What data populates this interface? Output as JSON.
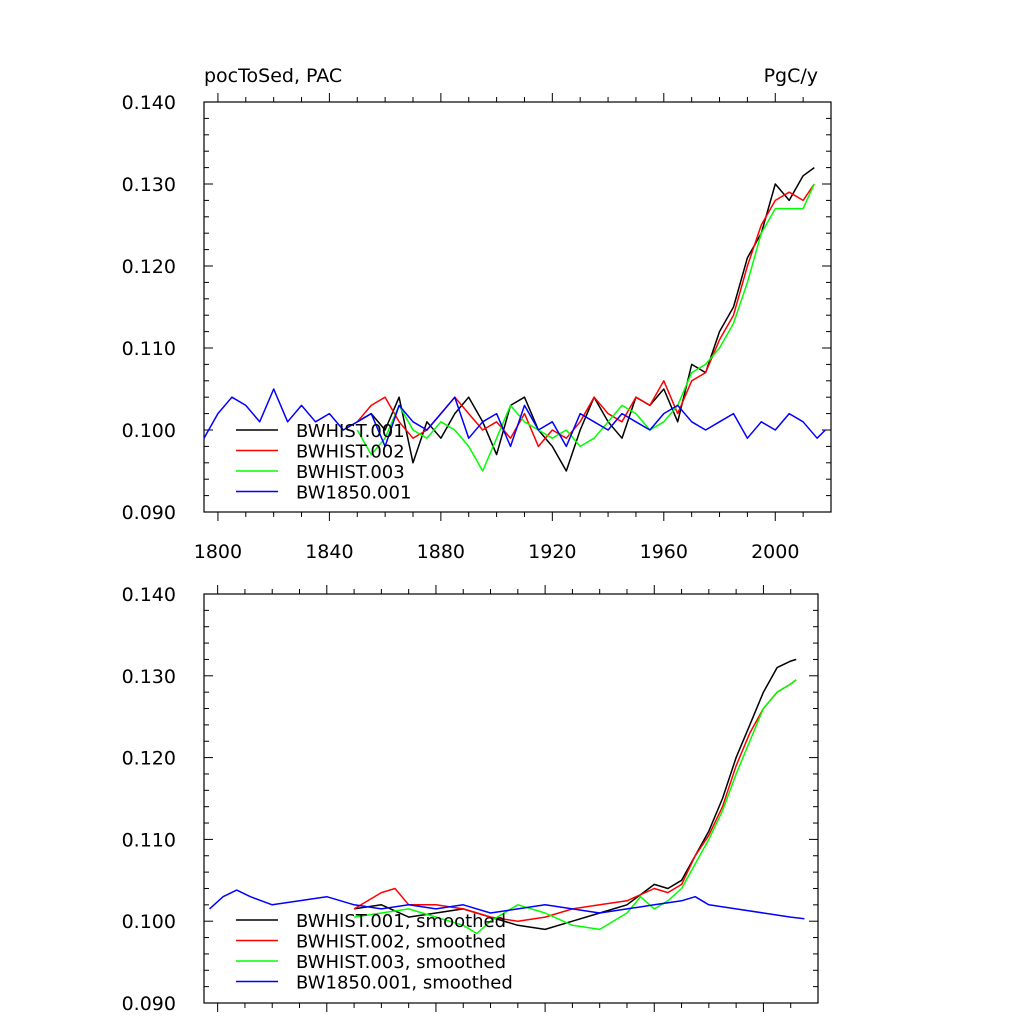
{
  "figure": {
    "left_label": "pocToSed, PAC",
    "right_label": "PgC/y"
  },
  "colors": {
    "BWHIST.001": "#000000",
    "BWHIST.002": "#ff0000",
    "BWHIST.003": "#00ff00",
    "BW1850.001": "#0000ff"
  },
  "chart_data": [
    {
      "type": "line",
      "title": "",
      "xlabel": "",
      "ylabel": "",
      "xlim": [
        1795,
        2020
      ],
      "ylim": [
        0.09,
        0.14
      ],
      "xticks": [
        "1800",
        "1840",
        "1880",
        "1920",
        "1960",
        "2000"
      ],
      "yticks": [
        "0.090",
        "0.100",
        "0.110",
        "0.120",
        "0.130",
        "0.140"
      ],
      "legend_position": "lower-left",
      "series": [
        {
          "name": "BWHIST.001",
          "color": "#000000",
          "x": [
            1850,
            1855,
            1860,
            1865,
            1870,
            1875,
            1880,
            1885,
            1890,
            1895,
            1900,
            1905,
            1910,
            1915,
            1920,
            1925,
            1930,
            1935,
            1940,
            1945,
            1950,
            1955,
            1960,
            1965,
            1970,
            1975,
            1980,
            1985,
            1990,
            1995,
            2000,
            2005,
            2010,
            2014
          ],
          "y": [
            0.101,
            0.102,
            0.1,
            0.104,
            0.096,
            0.101,
            0.099,
            0.102,
            0.104,
            0.101,
            0.097,
            0.103,
            0.104,
            0.1,
            0.098,
            0.095,
            0.1,
            0.104,
            0.101,
            0.099,
            0.104,
            0.103,
            0.105,
            0.101,
            0.108,
            0.107,
            0.112,
            0.115,
            0.121,
            0.124,
            0.13,
            0.128,
            0.131,
            0.132
          ]
        },
        {
          "name": "BWHIST.002",
          "color": "#ff0000",
          "x": [
            1850,
            1855,
            1860,
            1865,
            1870,
            1875,
            1880,
            1885,
            1890,
            1895,
            1900,
            1905,
            1910,
            1915,
            1920,
            1925,
            1930,
            1935,
            1940,
            1945,
            1950,
            1955,
            1960,
            1965,
            1970,
            1975,
            1980,
            1985,
            1990,
            1995,
            2000,
            2005,
            2010,
            2014
          ],
          "y": [
            0.101,
            0.103,
            0.104,
            0.101,
            0.099,
            0.1,
            0.102,
            0.104,
            0.102,
            0.1,
            0.101,
            0.099,
            0.102,
            0.098,
            0.1,
            0.099,
            0.101,
            0.104,
            0.102,
            0.101,
            0.104,
            0.103,
            0.106,
            0.102,
            0.106,
            0.107,
            0.111,
            0.114,
            0.12,
            0.125,
            0.128,
            0.129,
            0.128,
            0.13
          ]
        },
        {
          "name": "BWHIST.003",
          "color": "#00ff00",
          "x": [
            1850,
            1855,
            1860,
            1865,
            1870,
            1875,
            1880,
            1885,
            1890,
            1895,
            1900,
            1905,
            1910,
            1915,
            1920,
            1925,
            1930,
            1935,
            1940,
            1945,
            1950,
            1955,
            1960,
            1965,
            1970,
            1975,
            1980,
            1985,
            1990,
            1995,
            2000,
            2005,
            2010,
            2014
          ],
          "y": [
            0.1,
            0.097,
            0.099,
            0.103,
            0.1,
            0.099,
            0.101,
            0.1,
            0.098,
            0.095,
            0.099,
            0.103,
            0.101,
            0.1,
            0.099,
            0.1,
            0.098,
            0.099,
            0.101,
            0.103,
            0.102,
            0.1,
            0.101,
            0.103,
            0.107,
            0.108,
            0.11,
            0.113,
            0.118,
            0.124,
            0.127,
            0.127,
            0.127,
            0.13
          ]
        },
        {
          "name": "BW1850.001",
          "color": "#0000ff",
          "x": [
            1795,
            1800,
            1805,
            1810,
            1815,
            1820,
            1825,
            1830,
            1835,
            1840,
            1845,
            1850,
            1855,
            1860,
            1865,
            1870,
            1875,
            1880,
            1885,
            1890,
            1895,
            1900,
            1905,
            1910,
            1915,
            1920,
            1925,
            1930,
            1935,
            1940,
            1945,
            1950,
            1955,
            1960,
            1965,
            1970,
            1975,
            1980,
            1985,
            1990,
            1995,
            2000,
            2005,
            2010,
            2015,
            2018
          ],
          "y": [
            0.099,
            0.102,
            0.104,
            0.103,
            0.101,
            0.105,
            0.101,
            0.103,
            0.101,
            0.102,
            0.1,
            0.101,
            0.102,
            0.098,
            0.103,
            0.101,
            0.1,
            0.102,
            0.104,
            0.099,
            0.101,
            0.102,
            0.098,
            0.103,
            0.1,
            0.101,
            0.098,
            0.102,
            0.101,
            0.1,
            0.102,
            0.101,
            0.1,
            0.102,
            0.103,
            0.101,
            0.1,
            0.101,
            0.102,
            0.099,
            0.101,
            0.1,
            0.102,
            0.101,
            0.099,
            0.1
          ]
        }
      ]
    },
    {
      "type": "line",
      "title": "",
      "xlabel": "",
      "ylabel": "",
      "xlim": [
        1795,
        2020
      ],
      "ylim": [
        0.09,
        0.14
      ],
      "yticks": [
        "0.090",
        "0.100",
        "0.110",
        "0.120",
        "0.130",
        "0.140"
      ],
      "legend_position": "lower-left",
      "series": [
        {
          "name": "BWHIST.001, smoothed",
          "color": "#000000",
          "x": [
            1850,
            1860,
            1870,
            1880,
            1890,
            1900,
            1910,
            1920,
            1930,
            1940,
            1950,
            1960,
            1965,
            1970,
            1975,
            1980,
            1985,
            1990,
            1995,
            2000,
            2005,
            2010,
            2012
          ],
          "y": [
            0.1015,
            0.102,
            0.1005,
            0.101,
            0.1015,
            0.1005,
            0.0995,
            0.099,
            0.1,
            0.101,
            0.102,
            0.1045,
            0.104,
            0.105,
            0.108,
            0.111,
            0.115,
            0.12,
            0.124,
            0.128,
            0.131,
            0.1318,
            0.132
          ]
        },
        {
          "name": "BWHIST.002, smoothed",
          "color": "#ff0000",
          "x": [
            1850,
            1860,
            1865,
            1870,
            1880,
            1890,
            1900,
            1910,
            1920,
            1930,
            1940,
            1950,
            1960,
            1965,
            1970,
            1975,
            1980,
            1985,
            1990,
            1995,
            2000,
            2005,
            2010,
            2012
          ],
          "y": [
            0.1015,
            0.1035,
            0.104,
            0.102,
            0.102,
            0.1015,
            0.1005,
            0.1,
            0.1005,
            0.1015,
            0.102,
            0.1025,
            0.104,
            0.1035,
            0.1045,
            0.108,
            0.1105,
            0.114,
            0.119,
            0.123,
            0.126,
            0.128,
            0.129,
            0.1295
          ]
        },
        {
          "name": "BWHIST.003, smoothed",
          "color": "#00ff00",
          "x": [
            1850,
            1860,
            1870,
            1880,
            1890,
            1895,
            1900,
            1910,
            1920,
            1930,
            1940,
            1950,
            1955,
            1960,
            1965,
            1970,
            1975,
            1980,
            1985,
            1990,
            1995,
            2000,
            2005,
            2010,
            2012
          ],
          "y": [
            0.1005,
            0.101,
            0.1015,
            0.1005,
            0.0995,
            0.0985,
            0.1,
            0.102,
            0.101,
            0.0995,
            0.099,
            0.101,
            0.103,
            0.1015,
            0.1025,
            0.104,
            0.107,
            0.11,
            0.1135,
            0.118,
            0.122,
            0.126,
            0.128,
            0.129,
            0.1295
          ]
        },
        {
          "name": "BW1850.001, smoothed",
          "color": "#0000ff",
          "x": [
            1797,
            1802,
            1807,
            1812,
            1820,
            1830,
            1840,
            1850,
            1860,
            1870,
            1880,
            1890,
            1900,
            1910,
            1920,
            1930,
            1940,
            1950,
            1960,
            1970,
            1975,
            1980,
            1990,
            2000,
            2010,
            2015
          ],
          "y": [
            0.1015,
            0.103,
            0.1038,
            0.103,
            0.102,
            0.1025,
            0.103,
            0.102,
            0.1015,
            0.102,
            0.1015,
            0.102,
            0.101,
            0.1015,
            0.102,
            0.1015,
            0.101,
            0.1015,
            0.102,
            0.1025,
            0.103,
            0.102,
            0.1015,
            0.101,
            0.1005,
            0.1003
          ]
        }
      ]
    }
  ]
}
